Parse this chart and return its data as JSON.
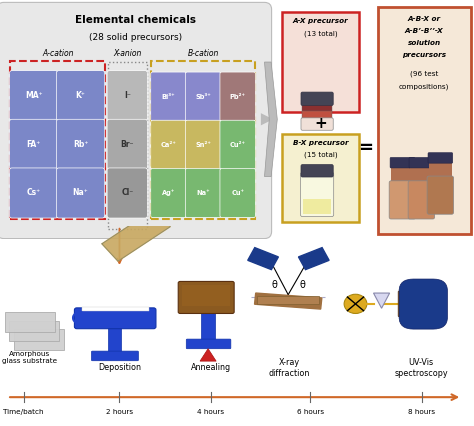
{
  "a_labels": [
    [
      "MA⁺",
      "K⁺"
    ],
    [
      "FA⁺",
      "Rb⁺"
    ],
    [
      "Cs⁺",
      "Na⁺"
    ]
  ],
  "x_labels": [
    "I⁻",
    "Br⁻",
    "Cl⁻"
  ],
  "b_labels": [
    [
      "Bi³⁺",
      "Sb³⁺",
      "Pb²⁺"
    ],
    [
      "Ca²⁺",
      "Sn²⁺",
      "Cu²⁺"
    ],
    [
      "Ag⁺",
      "Na⁺",
      "Cu⁺"
    ]
  ],
  "a_color": "#7b87c8",
  "x_colors": [
    "#b8b8b8",
    "#a8a8a8",
    "#989898"
  ],
  "b_colors": [
    [
      "#8888cc",
      "#8888cc",
      "#a07878"
    ],
    [
      "#c8b860",
      "#c8b860",
      "#78b870"
    ],
    [
      "#78b870",
      "#78b870",
      "#78b870"
    ]
  ],
  "title": "Elemental chemicals",
  "subtitle": "(28 solid precursors)",
  "ax_title": "A-X precursor",
  "ax_count": "(13 total)",
  "bx_title": "B-X precursor",
  "bx_count": "(15 total)",
  "res_line1": "A-B-X or",
  "res_line2": "A-B’-B’’-X",
  "res_line3": "solution",
  "res_line4": "precursors",
  "res_line5": "(96 test",
  "res_line6": "compositions)",
  "hour_labels": [
    "Time/batch",
    "2 hours",
    "4 hours",
    "6 hours",
    "8 hours"
  ],
  "step_labels": [
    "Amorphous\nglass substrate",
    "Deposition",
    "Annealing",
    "X-ray\ndiffraction",
    "UV-Vis\nspectroscopy"
  ],
  "bg_gray": "#e8e8e8",
  "ax_bg": "#f5e0d8",
  "bx_bg": "#f5f0d0",
  "res_bg": "#f5e8d8",
  "red_border": "#cc2222",
  "gold_border": "#c8a020",
  "orange_border": "#c05030",
  "blue_deep": "#1a3a8a",
  "spin_blue": "#2244cc",
  "brown_plate": "#8b5a20",
  "timeline_color": "#d06828"
}
